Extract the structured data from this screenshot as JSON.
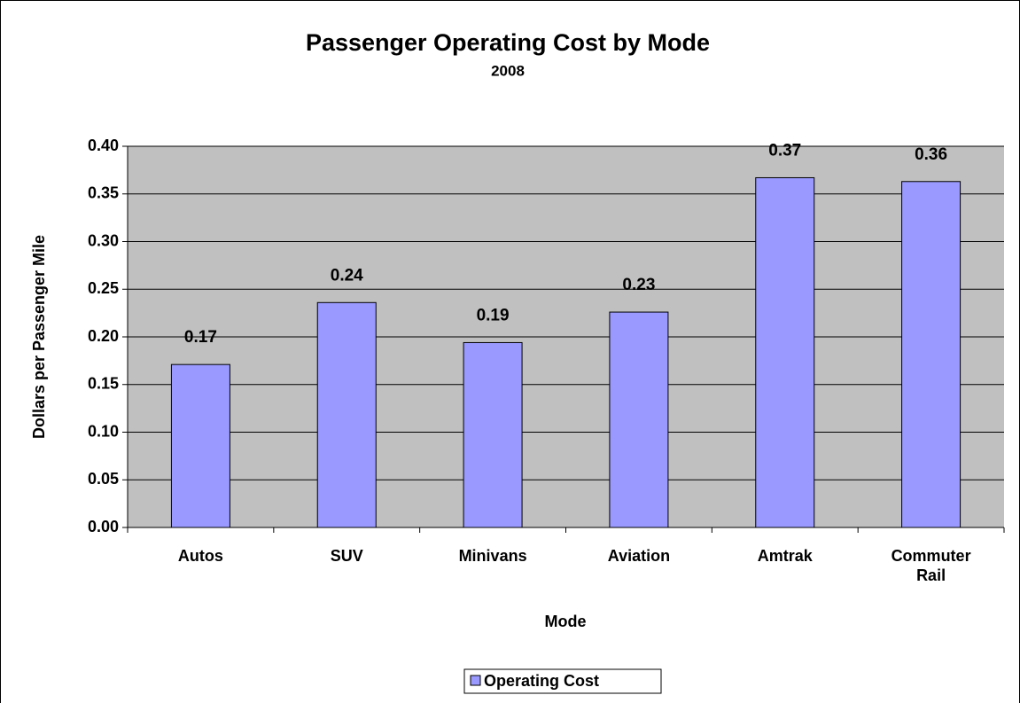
{
  "chart_data": {
    "type": "bar",
    "title": "Passenger Operating Cost by Mode",
    "subtitle": "2008",
    "x_label": "Mode",
    "y_label": "Dollars per Passenger Mile",
    "categories": [
      "Autos",
      "SUV",
      "Minivans",
      "Aviation",
      "Amtrak",
      "Commuter Rail"
    ],
    "series": [
      {
        "name": "Operating Cost",
        "color": "#9999ff",
        "values": [
          0.171,
          0.236,
          0.194,
          0.226,
          0.367,
          0.363
        ],
        "value_labels": [
          "0.17",
          "0.24",
          "0.19",
          "0.23",
          "0.37",
          "0.36"
        ]
      }
    ],
    "ylim": [
      0,
      0.4
    ],
    "yticks": [
      {
        "value": 0,
        "label": "0.00"
      },
      {
        "value": 0.05,
        "label": "0.05"
      },
      {
        "value": 0.1,
        "label": "0.10"
      },
      {
        "value": 0.15,
        "label": "0.15"
      },
      {
        "value": 0.2,
        "label": "0.20"
      },
      {
        "value": 0.25,
        "label": "0.25"
      },
      {
        "value": 0.3,
        "label": "0.30"
      },
      {
        "value": 0.35,
        "label": "0.35"
      },
      {
        "value": 0.4,
        "label": "0.40"
      }
    ],
    "grid": true,
    "legend": "bottom"
  }
}
